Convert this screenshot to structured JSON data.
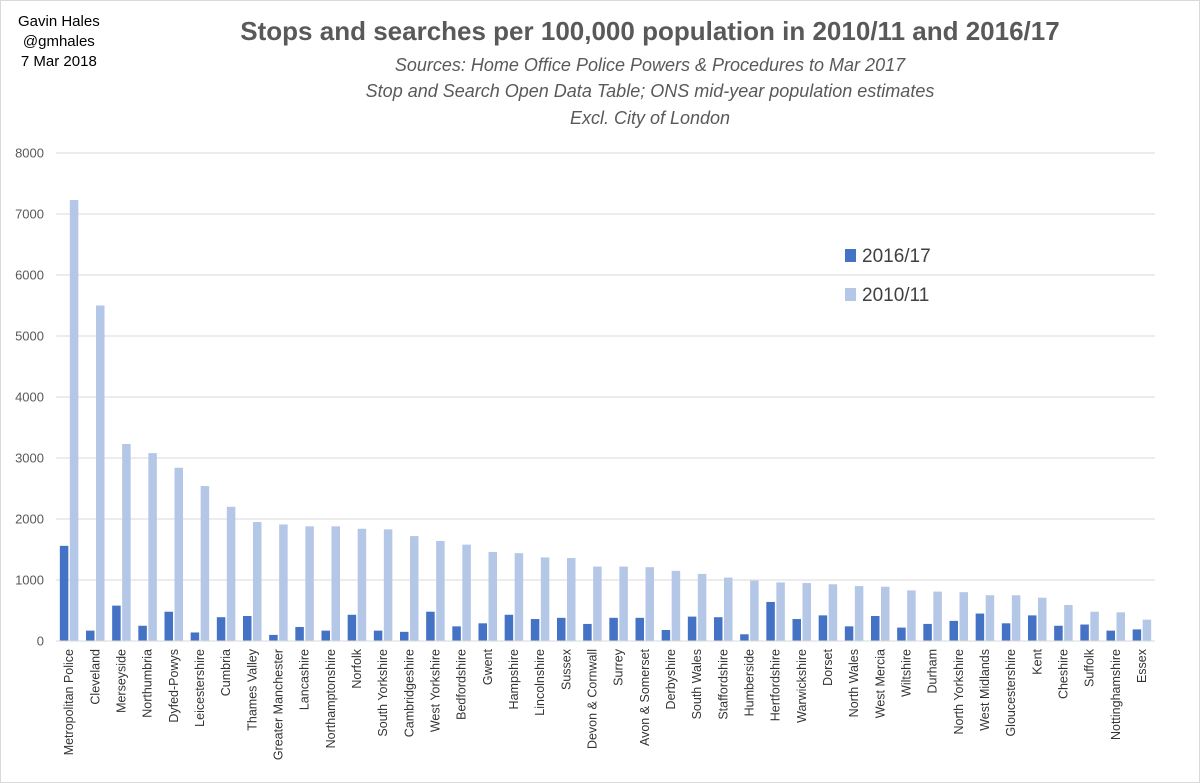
{
  "author": {
    "name": "Gavin Hales",
    "handle": "@gmhales",
    "date": "7 Mar 2018"
  },
  "chart_data": {
    "type": "bar",
    "title": "Stops and searches per 100,000 population in 2010/11 and 2016/17",
    "subtitle_lines": [
      "Sources: Home Office Police Powers & Procedures to Mar 2017",
      "Stop and Search Open Data Table; ONS mid-year population estimates",
      "Excl. City of London"
    ],
    "xlabel": "",
    "ylabel": "",
    "ylim": [
      0,
      8000
    ],
    "yticks": [
      0,
      1000,
      2000,
      3000,
      4000,
      5000,
      6000,
      7000,
      8000
    ],
    "grid": true,
    "legend_position": "upper-right",
    "categories": [
      "Metropolitan Police",
      "Cleveland",
      "Merseyside",
      "Northumbria",
      "Dyfed-Powys",
      "Leicestershire",
      "Cumbria",
      "Thames Valley",
      "Greater Manchester",
      "Lancashire",
      "Northamptonshire",
      "Norfolk",
      "South Yorkshire",
      "Cambridgeshire",
      "West Yorkshire",
      "Bedfordshire",
      "Gwent",
      "Hampshire",
      "Lincolnshire",
      "Sussex",
      "Devon & Cornwall",
      "Surrey",
      "Avon & Somerset",
      "Derbyshire",
      "South Wales",
      "Staffordshire",
      "Humberside",
      "Hertfordshire",
      "Warwickshire",
      "Dorset",
      "North Wales",
      "West Mercia",
      "Wiltshire",
      "Durham",
      "North Yorkshire",
      "West Midlands",
      "Gloucestershire",
      "Kent",
      "Cheshire",
      "Suffolk",
      "Nottinghamshire",
      "Essex"
    ],
    "series": [
      {
        "name": "2016/17",
        "color": "#4472c4",
        "values": [
          1560,
          170,
          580,
          250,
          480,
          140,
          390,
          410,
          100,
          230,
          170,
          430,
          170,
          150,
          480,
          240,
          290,
          430,
          360,
          380,
          280,
          380,
          380,
          180,
          400,
          390,
          110,
          640,
          360,
          420,
          240,
          410,
          220,
          280,
          330,
          450,
          290,
          420,
          250,
          270,
          170,
          190
        ]
      },
      {
        "name": "2010/11",
        "color": "#b4c7e7",
        "values": [
          7230,
          5500,
          3230,
          3080,
          2840,
          2540,
          2200,
          1950,
          1910,
          1880,
          1880,
          1840,
          1830,
          1720,
          1640,
          1580,
          1460,
          1440,
          1370,
          1360,
          1220,
          1220,
          1210,
          1150,
          1100,
          1040,
          990,
          960,
          950,
          930,
          900,
          890,
          830,
          810,
          800,
          750,
          750,
          710,
          590,
          480,
          470,
          350
        ]
      }
    ]
  }
}
